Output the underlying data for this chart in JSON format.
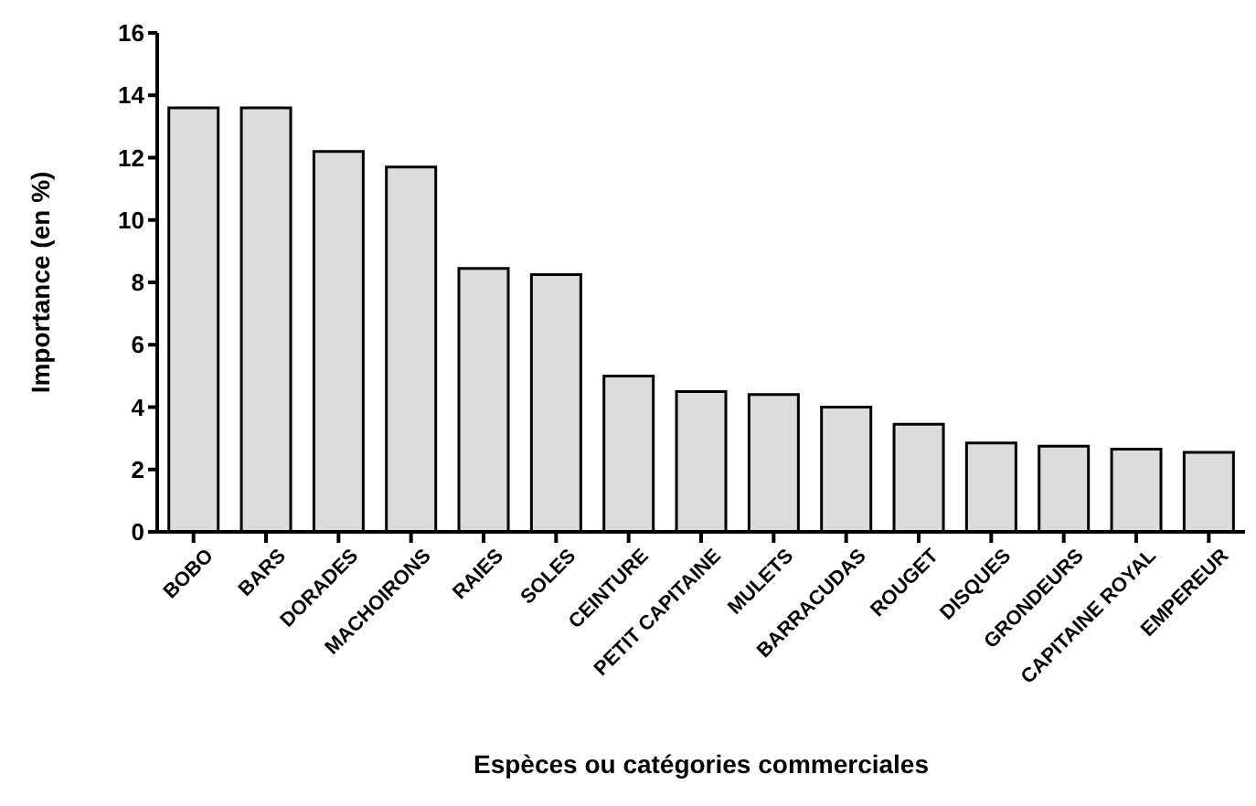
{
  "chart_data": {
    "type": "bar",
    "xlabel": "Espèces ou catégories commerciales",
    "ylabel": "Importance (en %)",
    "categories": [
      "BOBO",
      "BARS",
      "DORADES",
      "MACHOIRONS",
      "RAIES",
      "SOLES",
      "CEINTURE",
      "PETIT CAPITAINE",
      "MULETS",
      "BARRACUDAS",
      "ROUGET",
      "DISQUES",
      "GRONDEURS",
      "CAPITAINE ROYAL",
      "EMPEREUR"
    ],
    "values": [
      13.6,
      13.6,
      12.2,
      11.7,
      8.45,
      8.25,
      5.0,
      4.5,
      4.4,
      4.0,
      3.45,
      2.85,
      2.75,
      2.65,
      2.55
    ],
    "color": "#dcdcdc",
    "ylim": [
      0,
      16
    ],
    "yticks": [
      0,
      2,
      4,
      6,
      8,
      10,
      12,
      14,
      16
    ],
    "grid": false,
    "legend": false
  }
}
